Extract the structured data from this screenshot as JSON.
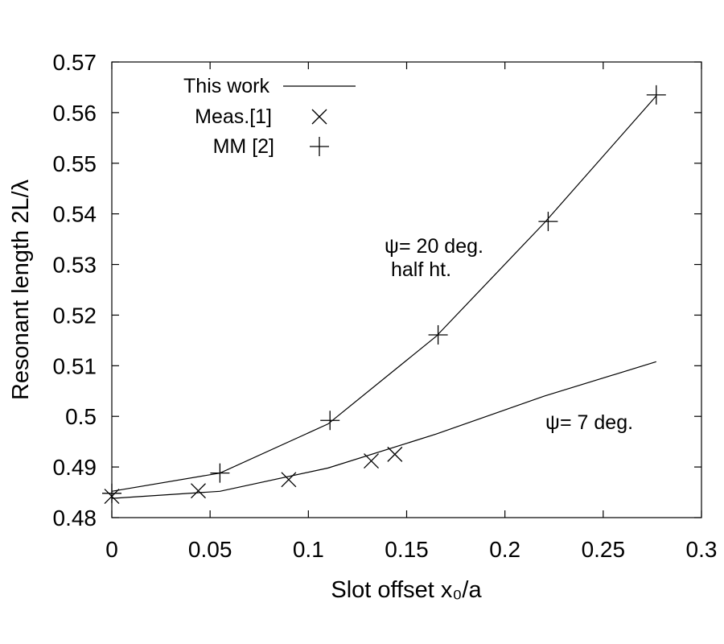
{
  "chart_data": {
    "type": "line",
    "title": "",
    "xlabel": "Slot offset  x₀/a",
    "ylabel": "Resonant length 2L/λ",
    "xlim": [
      0,
      0.3
    ],
    "ylim": [
      0.48,
      0.57
    ],
    "xticks": [
      "0",
      "0.05",
      "0.1",
      "0.15",
      "0.2",
      "0.25",
      "0.3"
    ],
    "yticks": [
      "0.48",
      "0.49",
      "0.5",
      "0.51",
      "0.52",
      "0.53",
      "0.54",
      "0.55",
      "0.56",
      "0.57"
    ],
    "grid": false,
    "legend_position": "top-left",
    "series": [
      {
        "name": "This work",
        "label_in_legend": true,
        "style": "line",
        "x": [
          0,
          0.055,
          0.11,
          0.165,
          0.22,
          0.277
        ],
        "y": [
          0.4852,
          0.4888,
          0.4985,
          0.5158,
          0.5382,
          0.5633
        ]
      },
      {
        "name": "This work",
        "label_in_legend": false,
        "style": "line",
        "x": [
          0,
          0.055,
          0.11,
          0.165,
          0.22,
          0.277
        ],
        "y": [
          0.4838,
          0.4852,
          0.4898,
          0.4965,
          0.504,
          0.5108
        ]
      },
      {
        "name": "Meas.[1]",
        "label_in_legend": true,
        "style": "x-marker",
        "x": [
          0,
          0.044,
          0.09,
          0.132,
          0.144
        ],
        "y": [
          0.4842,
          0.4853,
          0.4875,
          0.4912,
          0.4925
        ]
      },
      {
        "name": "MM [2]",
        "label_in_legend": true,
        "style": "plus-marker",
        "x": [
          0,
          0.055,
          0.111,
          0.166,
          0.222,
          0.277
        ],
        "y": [
          0.4848,
          0.4888,
          0.4992,
          0.5161,
          0.5385,
          0.5635
        ]
      }
    ],
    "annotations": [
      {
        "symbol": "ψ",
        "text": "= 20 deg.",
        "sub": "half ht.",
        "x": 0.137,
        "y": 0.5343
      },
      {
        "symbol": "ψ",
        "text": "= 7 deg.",
        "x": 0.219,
        "y": 0.4992
      }
    ]
  }
}
